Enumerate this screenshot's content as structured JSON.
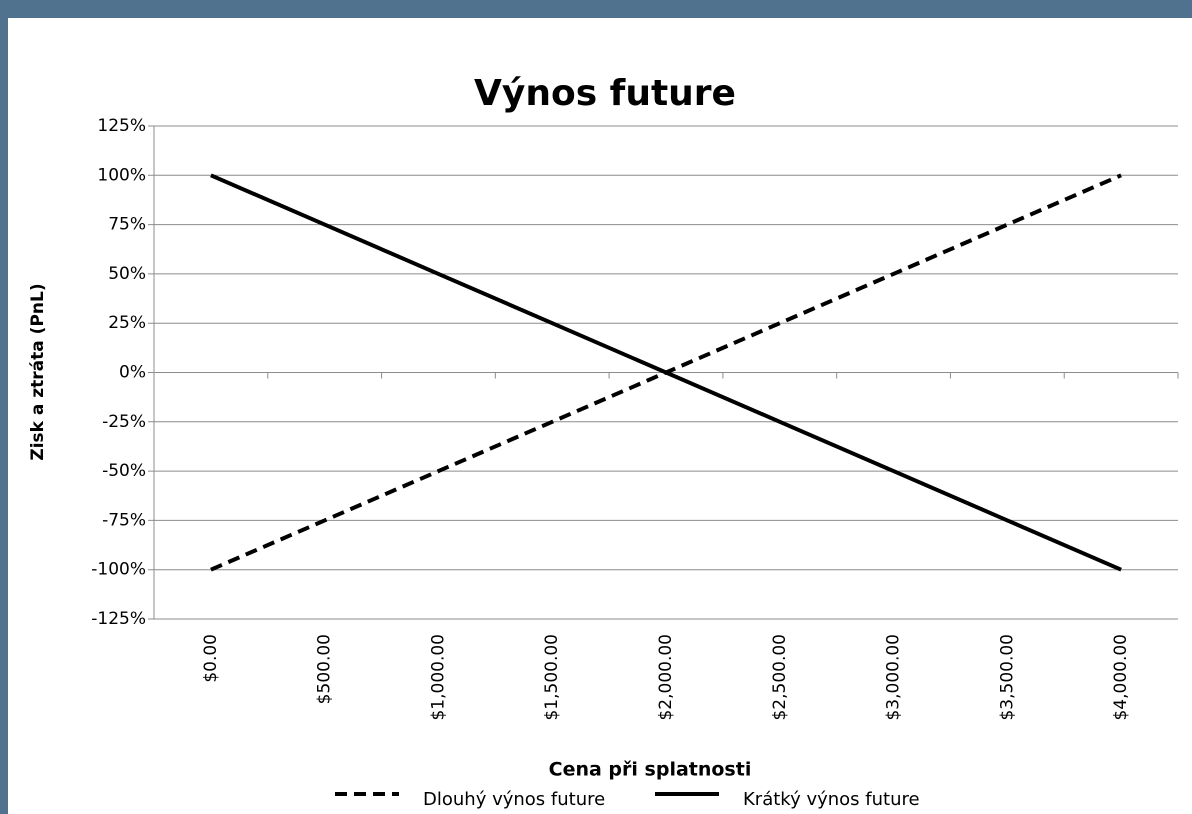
{
  "chart_data": {
    "type": "line",
    "title": "Výnos future",
    "xlabel": "Cena při splatnosti",
    "ylabel": "Zisk a ztráta (PnL)",
    "categories": [
      "$0.00",
      "$500.00",
      "$1,000.00",
      "$1,500.00",
      "$2,000.00",
      "$2,500.00",
      "$3,000.00",
      "$3,500.00",
      "$4,000.00"
    ],
    "series": [
      {
        "name": "Dlouhý výnos future",
        "color": "#000000",
        "dash": true,
        "values": [
          -100,
          -75,
          -50,
          -25,
          0,
          25,
          50,
          75,
          100
        ]
      },
      {
        "name": "Krátký výnos future",
        "color": "#000000",
        "dash": false,
        "values": [
          100,
          75,
          50,
          25,
          0,
          -25,
          -50,
          -75,
          -100
        ]
      }
    ],
    "ylim": [
      -125,
      125
    ],
    "yticks": [
      {
        "value": -125,
        "label": "-125%"
      },
      {
        "value": -100,
        "label": "-100%"
      },
      {
        "value": -75,
        "label": "-75%"
      },
      {
        "value": -50,
        "label": "-50%"
      },
      {
        "value": -25,
        "label": "-25%"
      },
      {
        "value": 0,
        "label": "0%"
      },
      {
        "value": 25,
        "label": "25%"
      },
      {
        "value": 50,
        "label": "50%"
      },
      {
        "value": 75,
        "label": "75%"
      },
      {
        "value": 100,
        "label": "100%"
      },
      {
        "value": 125,
        "label": "125%"
      }
    ],
    "grid": true,
    "legend": "bottom"
  }
}
